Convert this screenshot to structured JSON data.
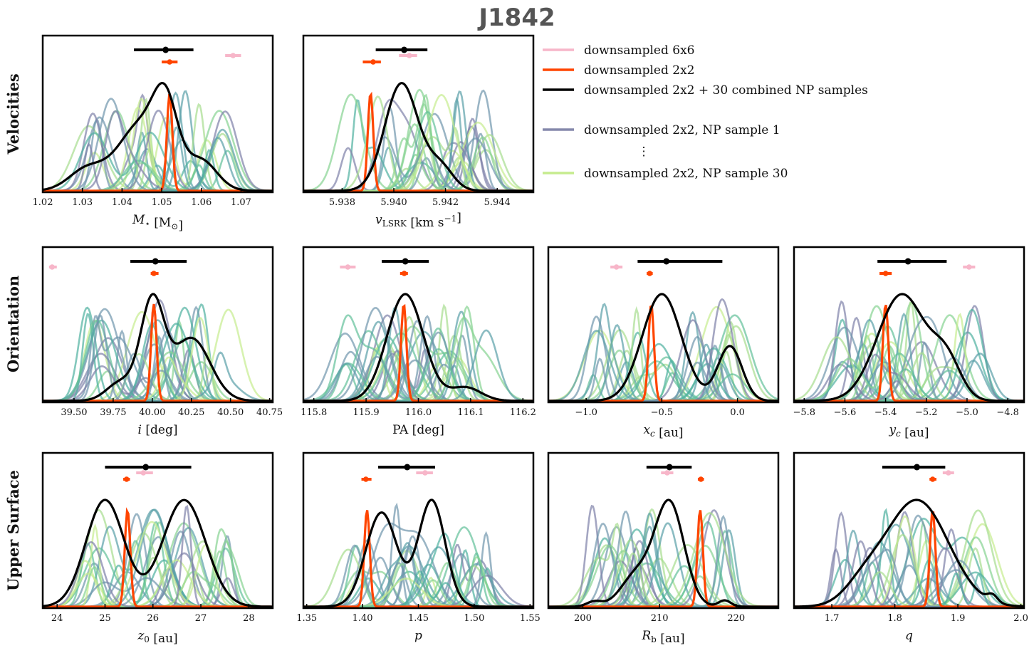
{
  "figure": {
    "title": "J1842"
  },
  "rows": [
    "Velocities",
    "Orientation",
    "Upper Surface"
  ],
  "legend": {
    "items": [
      {
        "label": "downsampled 6x6",
        "color": "#f7b6c9"
      },
      {
        "label": "downsampled 2x2",
        "color": "#ff4500"
      },
      {
        "label": "downsampled 2x2 + 30 combined NP samples",
        "color": "#000000"
      },
      {
        "label": "downsampled 2x2, NP sample 1",
        "color": "#8588ab"
      },
      {
        "label": "downsampled 2x2, NP sample 30",
        "color": "#c6ec8e"
      }
    ],
    "ellipsis": "⋮"
  },
  "colors": {
    "pink": "#f7b6c9",
    "red": "#ff4500",
    "black": "#000000",
    "viridis": [
      "#7e80a8",
      "#6f95ad",
      "#5aa0a8",
      "#4fb0a0",
      "#62c19a",
      "#86d391",
      "#a7dd8e",
      "#c6ec8e"
    ]
  },
  "chart_data": [
    {
      "id": "mstar",
      "type": "kde",
      "row": 0,
      "col": 0,
      "xlabel": "M⋆ [M⊙]",
      "xlim": [
        1.02,
        1.078
      ],
      "ticks": [
        1.02,
        1.03,
        1.04,
        1.05,
        1.06,
        1.07
      ],
      "tick_labels": [
        "1.02",
        "1.03",
        "1.04",
        "1.05",
        "1.06",
        "1.07"
      ],
      "summaries": {
        "black": [
          1.051,
          1.043,
          1.058
        ],
        "red": [
          1.052,
          1.05,
          1.054
        ],
        "pink": [
          1.068,
          1.066,
          1.07
        ]
      },
      "red_peak": 1.052,
      "black_kde": [
        [
          1.031,
          0.2,
          0.0045
        ],
        [
          1.045,
          0.65,
          0.006
        ],
        [
          1.051,
          0.6,
          0.003
        ],
        [
          1.06,
          0.28,
          0.004
        ]
      ]
    },
    {
      "id": "vlsrk",
      "type": "kde",
      "row": 0,
      "col": 1,
      "xlabel": "vLSRK [km s⁻¹]",
      "xlim": [
        5.9365,
        5.9454
      ],
      "ticks": [
        5.938,
        5.94,
        5.942,
        5.944
      ],
      "tick_labels": [
        "5.938",
        "5.940",
        "5.942",
        "5.944"
      ],
      "summaries": {
        "black": [
          5.9404,
          5.9393,
          5.9413
        ],
        "red": [
          5.9392,
          5.9388,
          5.9395
        ],
        "pink": [
          5.9406,
          5.9402,
          5.9409
        ]
      },
      "red_peak": 5.9391,
      "black_kde": [
        [
          5.9403,
          1.0,
          0.00065
        ],
        [
          5.9418,
          0.22,
          0.0005
        ]
      ]
    },
    {
      "id": "incl",
      "type": "kde",
      "row": 1,
      "col": 0,
      "xlabel": "i [deg]",
      "xlim": [
        39.3,
        40.77
      ],
      "ticks": [
        39.5,
        39.75,
        40.0,
        40.25,
        40.5,
        40.75
      ],
      "tick_labels": [
        "39.50",
        "39.75",
        "40.00",
        "40.25",
        "40.50",
        "40.75"
      ],
      "summaries": {
        "black": [
          40.02,
          39.86,
          40.22
        ],
        "red": [
          40.01,
          39.99,
          40.04
        ],
        "pink": [
          39.36,
          39.34,
          39.39
        ]
      },
      "red_peak": 40.01,
      "black_kde": [
        [
          40.0,
          0.78,
          0.075
        ],
        [
          40.25,
          0.5,
          0.12
        ],
        [
          39.8,
          0.15,
          0.09
        ]
      ]
    },
    {
      "id": "pa",
      "type": "kde",
      "row": 1,
      "col": 1,
      "xlabel": "PA [deg]",
      "xlim": [
        115.78,
        116.22
      ],
      "ticks": [
        115.8,
        115.9,
        116.0,
        116.1,
        116.2
      ],
      "tick_labels": [
        "115.8",
        "115.9",
        "116.0",
        "116.1",
        "116.2"
      ],
      "summaries": {
        "black": [
          115.975,
          115.93,
          116.02
        ],
        "red": [
          115.973,
          115.965,
          115.98
        ],
        "pink": [
          115.865,
          115.85,
          115.88
        ]
      },
      "red_peak": 115.972,
      "black_kde": [
        [
          115.975,
          0.95,
          0.035
        ],
        [
          116.09,
          0.12,
          0.03
        ]
      ]
    },
    {
      "id": "xc",
      "type": "kde",
      "row": 1,
      "col": 2,
      "xlabel": "xc [au]",
      "xlim": [
        -1.25,
        0.27
      ],
      "ticks": [
        -1.0,
        -0.5,
        0.0
      ],
      "tick_labels": [
        "−1.0",
        "−0.5",
        "0.0"
      ],
      "summaries": {
        "black": [
          -0.47,
          -0.66,
          -0.1
        ],
        "red": [
          -0.58,
          -0.6,
          -0.56
        ],
        "pink": [
          -0.8,
          -0.84,
          -0.76
        ]
      },
      "red_peak": -0.57,
      "black_kde": [
        [
          -0.5,
          0.88,
          0.13
        ],
        [
          -0.05,
          0.45,
          0.08
        ]
      ]
    },
    {
      "id": "yc",
      "type": "kde",
      "row": 1,
      "col": 3,
      "xlabel": "yc [au]",
      "xlim": [
        -5.85,
        -4.72
      ],
      "ticks": [
        -5.8,
        -5.6,
        -5.4,
        -5.2,
        -5.0,
        -4.8
      ],
      "tick_labels": [
        "−5.8",
        "−5.6",
        "−5.4",
        "−5.2",
        "−5.0",
        "−4.8"
      ],
      "summaries": {
        "black": [
          -5.29,
          -5.44,
          -5.1
        ],
        "red": [
          -5.4,
          -5.43,
          -5.37
        ],
        "pink": [
          -4.99,
          -5.02,
          -4.96
        ]
      },
      "red_peak": -5.4,
      "black_kde": [
        [
          -5.32,
          0.9,
          0.12
        ],
        [
          -5.1,
          0.3,
          0.07
        ]
      ]
    },
    {
      "id": "z0",
      "type": "kde",
      "row": 2,
      "col": 0,
      "xlabel": "z0 [au]",
      "xlim": [
        23.7,
        28.5
      ],
      "ticks": [
        24,
        25,
        26,
        27,
        28
      ],
      "tick_labels": [
        "24",
        "25",
        "26",
        "27",
        "28"
      ],
      "summaries": {
        "black": [
          25.85,
          25.0,
          26.8
        ],
        "red": [
          25.45,
          25.38,
          25.52
        ],
        "pink": [
          25.8,
          25.65,
          26.0
        ]
      },
      "red_peak": 25.47,
      "black_kde": [
        [
          25.0,
          0.72,
          0.4
        ],
        [
          26.65,
          0.72,
          0.45
        ]
      ]
    },
    {
      "id": "p",
      "type": "kde",
      "row": 2,
      "col": 1,
      "xlabel": "p",
      "xlim": [
        1.347,
        1.553
      ],
      "ticks": [
        1.35,
        1.4,
        1.45,
        1.5,
        1.55
      ],
      "tick_labels": [
        "1.35",
        "1.40",
        "1.45",
        "1.50",
        "1.55"
      ],
      "summaries": {
        "black": [
          1.44,
          1.414,
          1.465
        ],
        "red": [
          1.403,
          1.399,
          1.408
        ],
        "pink": [
          1.456,
          1.448,
          1.463
        ]
      },
      "red_peak": 1.404,
      "black_kde": [
        [
          1.417,
          0.62,
          0.014
        ],
        [
          1.462,
          0.7,
          0.012
        ]
      ]
    },
    {
      "id": "rb",
      "type": "kde",
      "row": 2,
      "col": 2,
      "xlabel": "Rb [au]",
      "xlim": [
        195.5,
        225.5
      ],
      "ticks": [
        200,
        210,
        220
      ],
      "tick_labels": [
        "200",
        "210",
        "220"
      ],
      "summaries": {
        "black": [
          211.3,
          208.3,
          214.2
        ],
        "red": [
          215.4,
          215.0,
          215.8
        ],
        "pink": [
          211.0,
          210.2,
          211.8
        ]
      },
      "red_peak": 215.3,
      "black_kde": [
        [
          211.3,
          0.82,
          1.9
        ],
        [
          207.0,
          0.25,
          2.0
        ],
        [
          201.5,
          0.04,
          1.0
        ],
        [
          218.5,
          0.05,
          0.8
        ]
      ]
    },
    {
      "id": "q",
      "type": "kde",
      "row": 2,
      "col": 3,
      "xlabel": "q",
      "xlim": [
        1.64,
        2.005
      ],
      "ticks": [
        1.7,
        1.8,
        1.9,
        2.0
      ],
      "tick_labels": [
        "1.7",
        "1.8",
        "1.9",
        "2.0"
      ],
      "summaries": {
        "black": [
          1.835,
          1.78,
          1.88
        ],
        "red": [
          1.86,
          1.855,
          1.866
        ],
        "pink": [
          1.885,
          1.876,
          1.894
        ]
      },
      "red_peak": 1.86,
      "black_kde": [
        [
          1.835,
          0.92,
          0.05
        ],
        [
          1.75,
          0.15,
          0.03
        ],
        [
          1.955,
          0.06,
          0.008
        ]
      ]
    }
  ]
}
